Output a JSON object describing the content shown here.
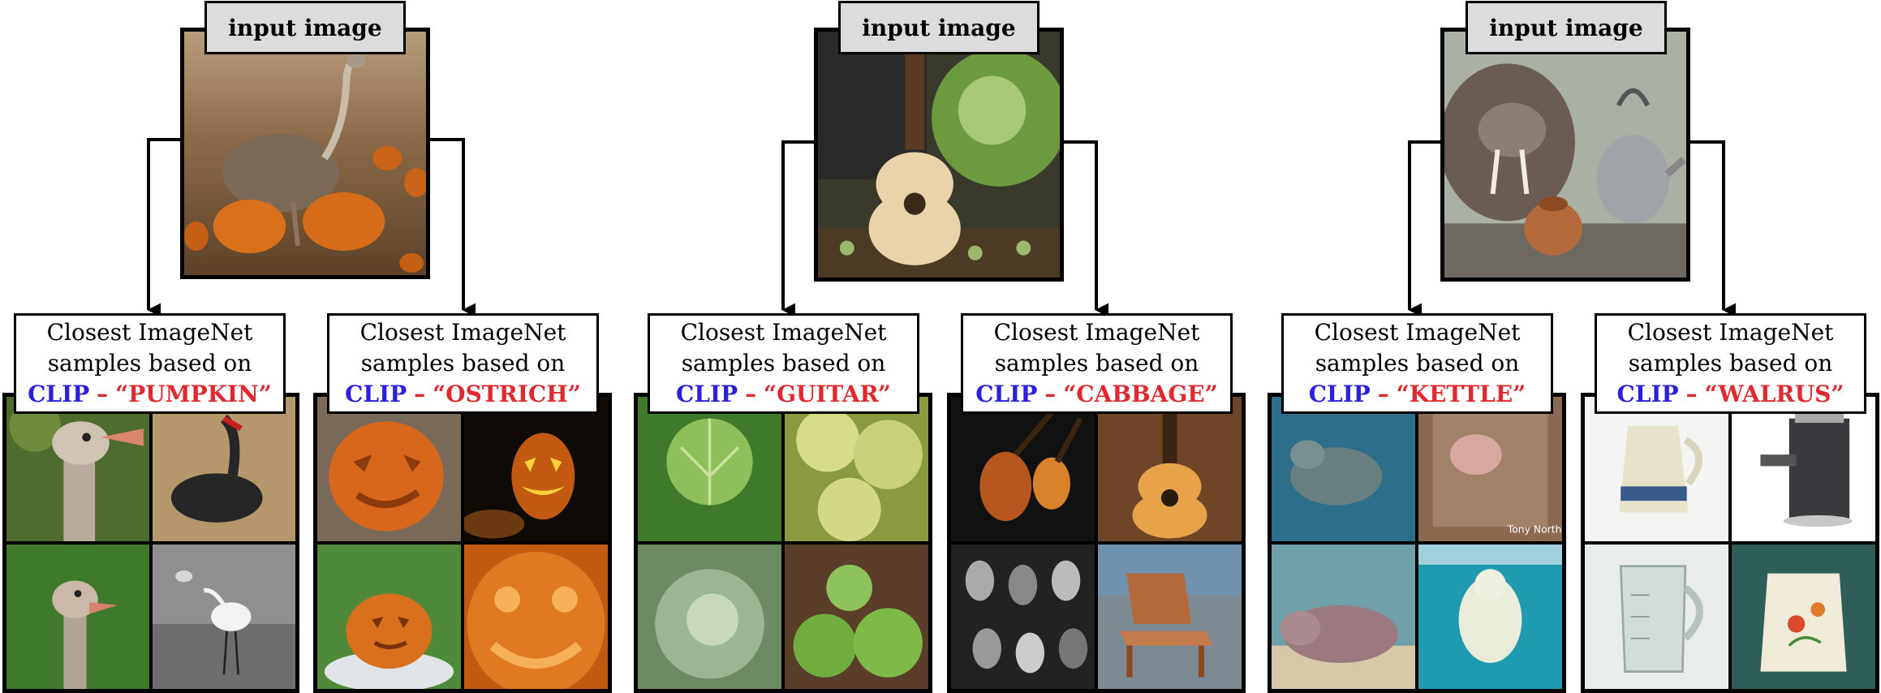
{
  "labels": {
    "input_image": "input image"
  },
  "caption": {
    "line1": "Closest ImageNet",
    "line2": "samples based on",
    "model": "CLIP",
    "separator": "–"
  },
  "groups": [
    {
      "input_subject": "ostrich-and-pumpkins",
      "left_word": "“PUMPKIN”",
      "right_word": "“OSTRICH”",
      "left_tiles": [
        "ostrich-head",
        "black-swan",
        "ostrich-neck",
        "white-spoonbill"
      ],
      "right_tiles": [
        "carved-pumpkin",
        "jack-o-lantern",
        "pumpkin-in-fog",
        "large-carved-pumpkin"
      ]
    },
    {
      "input_subject": "guitar-and-cabbage",
      "left_word": "“GUITAR”",
      "right_word": "“CABBAGE”",
      "left_tiles": [
        "cabbage-leaves",
        "yellow-cabbage",
        "cabbage-head",
        "leafy-greens"
      ],
      "right_tiles": [
        "cello-and-guitar",
        "acoustic-guitar",
        "guitar-collage",
        "wooden-chair"
      ]
    },
    {
      "input_subject": "walrus-and-kettle",
      "left_word": "“KETTLE”",
      "right_word": "“WALRUS”",
      "left_tiles": [
        "manatee",
        "sea-lion",
        "hippopotamus",
        "polar-bear"
      ],
      "right_tiles": [
        "coffee-pot",
        "espresso-machine",
        "measuring-jug",
        "floral-pitcher"
      ]
    }
  ],
  "watermarks": {
    "tile_text": "Tony Northrup"
  },
  "colors": {
    "clip_blue": "#2a1fe0",
    "word_red": "#e0282e",
    "label_gray": "#dcdcdc"
  }
}
